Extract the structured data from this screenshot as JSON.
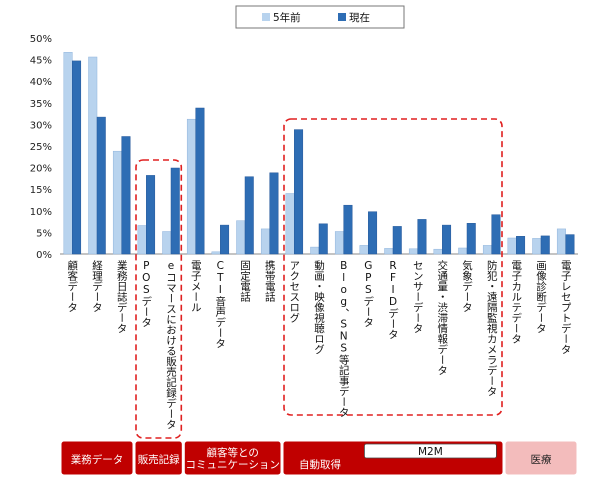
{
  "chart_data": {
    "type": "bar",
    "title": "",
    "xlabel": "",
    "ylabel": "",
    "ylim": [
      0,
      50
    ],
    "yticks": [
      "0%",
      "5%",
      "10%",
      "15%",
      "20%",
      "25%",
      "30%",
      "35%",
      "40%",
      "45%",
      "50%"
    ],
    "grid": false,
    "legend_position": "top",
    "categories": [
      "顧客データ",
      "経理データ",
      "業務日誌データ",
      "POSデータ",
      "eコマースにおける販売記録データ",
      "電子メール",
      "CTI音声データ",
      "固定電話",
      "携帯電話",
      "アクセスログ",
      "動画・映像視聴ログ",
      "Blog、SNS等記事データ",
      "GPSデータ",
      "RFIDデータ",
      "センサーデータ",
      "交通量・渋滞情報データ",
      "気象データ",
      "防犯・遠隔監視カメラデータ",
      "電子カルテデータ",
      "画像診断データ",
      "電子レセプトデータ"
    ],
    "series": [
      {
        "name": "5年前",
        "color": "#b8d3ee",
        "values": [
          46.7,
          45.6,
          23.8,
          6.6,
          5.2,
          31.2,
          0.5,
          7.7,
          5.8,
          14.0,
          1.6,
          5.2,
          2.0,
          1.3,
          1.2,
          1.1,
          1.4,
          2.0,
          3.7,
          3.6,
          5.8
        ]
      },
      {
        "name": "現在",
        "color": "#2e6db4",
        "values": [
          44.7,
          31.7,
          27.2,
          18.2,
          19.9,
          33.8,
          6.7,
          17.9,
          18.8,
          28.8,
          7.0,
          11.3,
          9.8,
          6.4,
          8.0,
          6.7,
          7.1,
          9.1,
          4.1,
          4.2,
          4.5
        ]
      }
    ],
    "groups": [
      {
        "label": "業務データ",
        "sublabel": "",
        "start": 0,
        "end": 2,
        "highlighted": false,
        "color": "#c00000"
      },
      {
        "label": "販売記録",
        "sublabel": "",
        "start": 3,
        "end": 4,
        "highlighted": true,
        "color": "#c00000"
      },
      {
        "label": "顧客等との\nコミュニケーション",
        "sublabel": "",
        "start": 5,
        "end": 8,
        "highlighted": false,
        "color": "#c00000"
      },
      {
        "label": "自動取得",
        "sublabel": "M2M",
        "start": 9,
        "end": 17,
        "highlighted": true,
        "color": "#c00000"
      },
      {
        "label": "医療",
        "sublabel": "",
        "start": 18,
        "end": 20,
        "highlighted": false,
        "color": "#f3bcbc"
      }
    ]
  }
}
